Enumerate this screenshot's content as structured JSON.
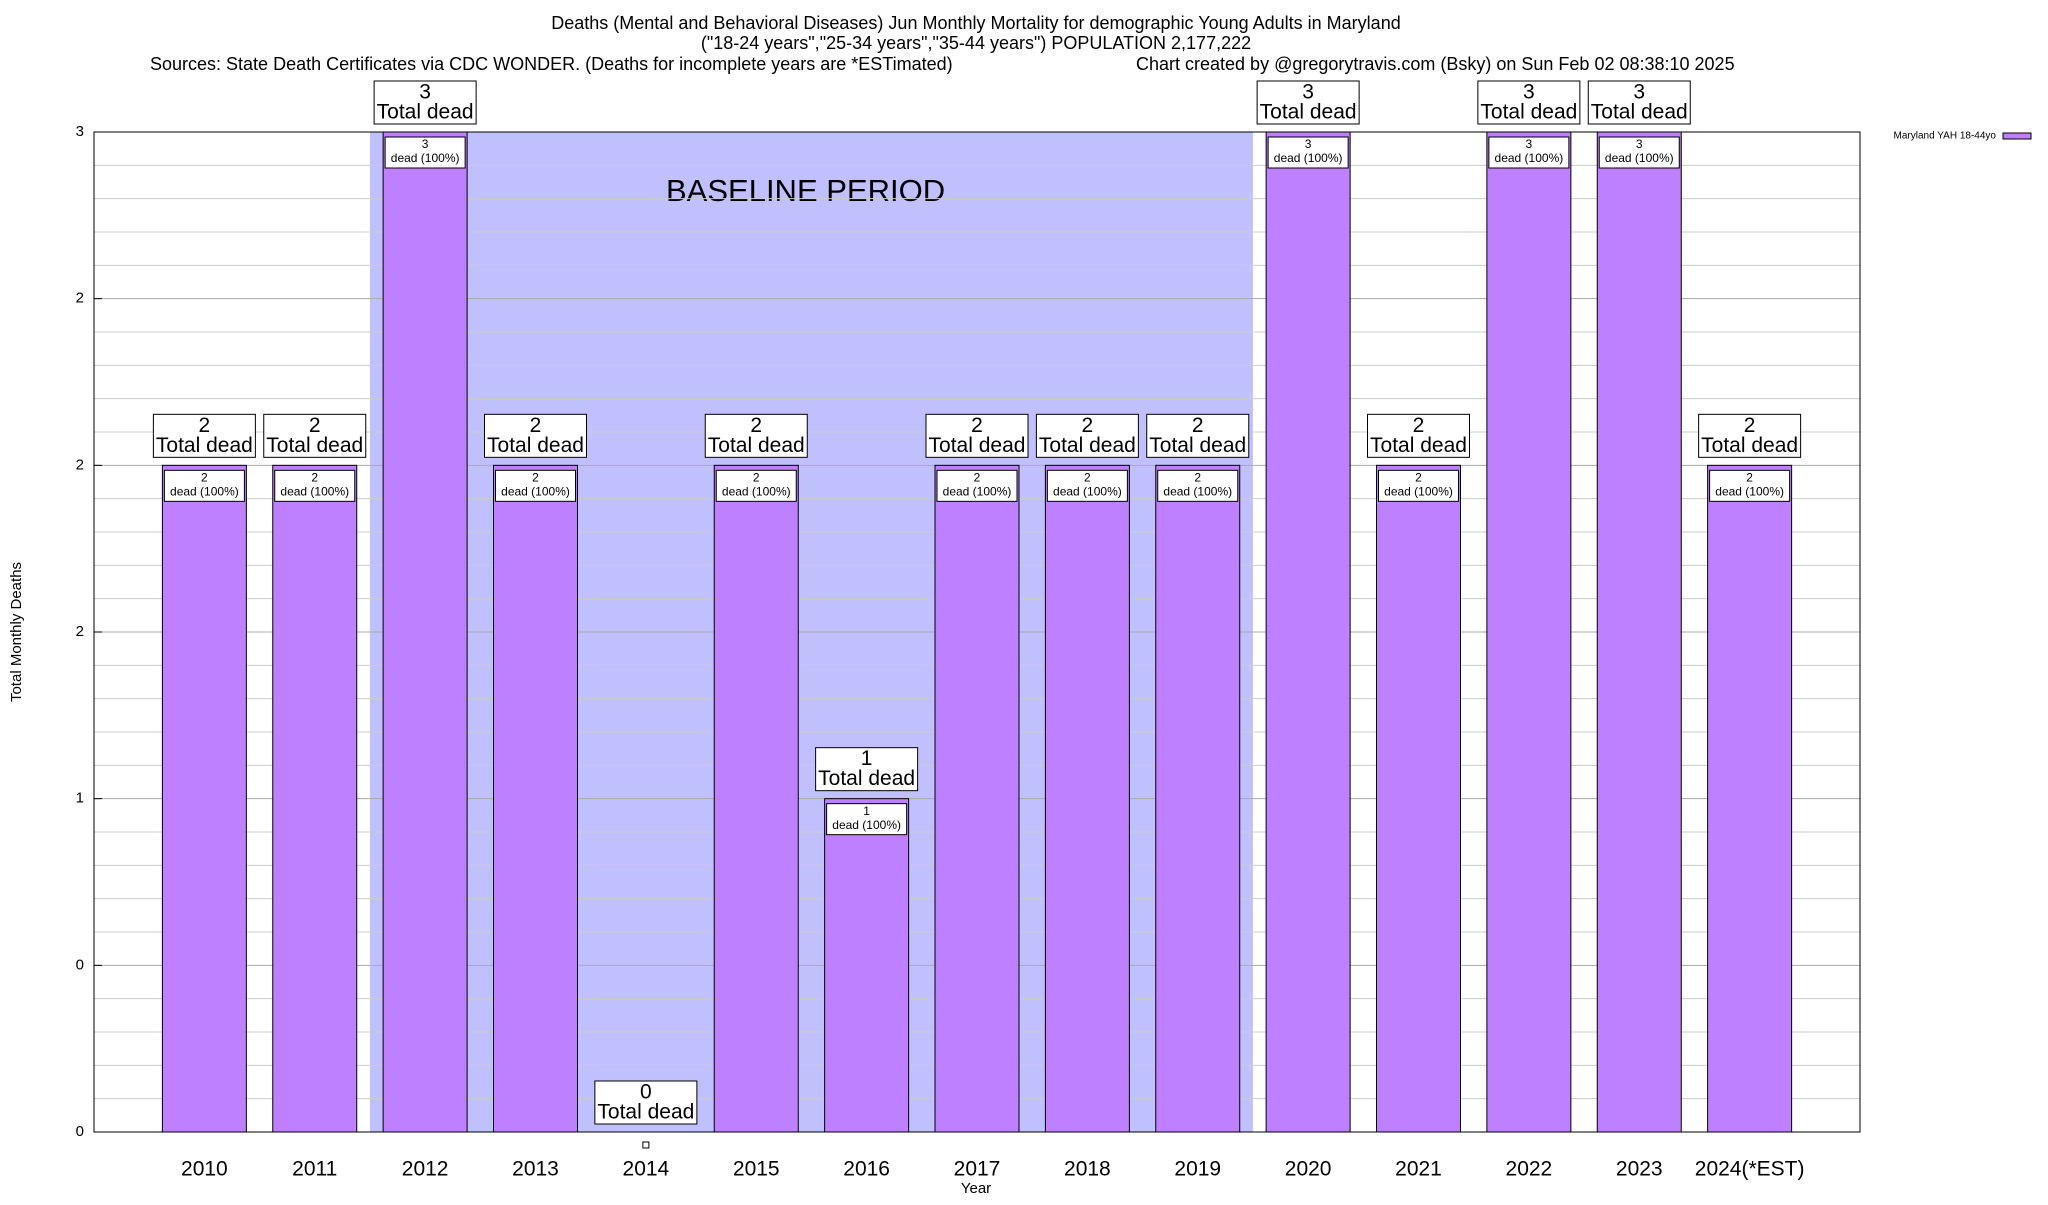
{
  "chart_data": {
    "type": "bar",
    "title": "Deaths (Mental and Behavioral Diseases) Jun Monthly Mortality for demographic Young Adults in Maryland",
    "subtitle": "(\"18-24 years\",\"25-34 years\",\"35-44 years\") POPULATION 2,177,222",
    "source": "Sources: State Death Certificates via CDC WONDER. (Deaths for incomplete years are *ESTimated)",
    "credit": "Chart created by @gregorytravis.com (Bsky) on Sun Feb 02 08:38:10 2025",
    "x_label": "Year",
    "y_label": "Total Monthly Deaths",
    "categories": [
      "2010",
      "2011",
      "2012",
      "2013",
      "2014",
      "2015",
      "2016",
      "2017",
      "2018",
      "2019",
      "2020",
      "2021",
      "2022",
      "2023",
      "2024(*EST)"
    ],
    "series": [
      {
        "name": "Maryland YAH 18-44yo",
        "color": "#bf80ff",
        "values": [
          2,
          2,
          3,
          2,
          0,
          2,
          1,
          2,
          2,
          2,
          3,
          2,
          3,
          3,
          2
        ]
      }
    ],
    "total_label": "Total dead",
    "inner_label": "dead (100%)",
    "baseline": {
      "label": "BASELINE PERIOD",
      "start": "2012",
      "end": "2019",
      "color": "#c0c0ff"
    },
    "ylim": [
      0,
      3
    ],
    "yticks": [
      0,
      {
        "value": 0.5,
        "label": "0"
      },
      1,
      {
        "value": 1.5,
        "label": "2"
      },
      2,
      {
        "value": 2.5,
        "label": "2"
      },
      3
    ],
    "grid": true,
    "legend": "top-right"
  }
}
